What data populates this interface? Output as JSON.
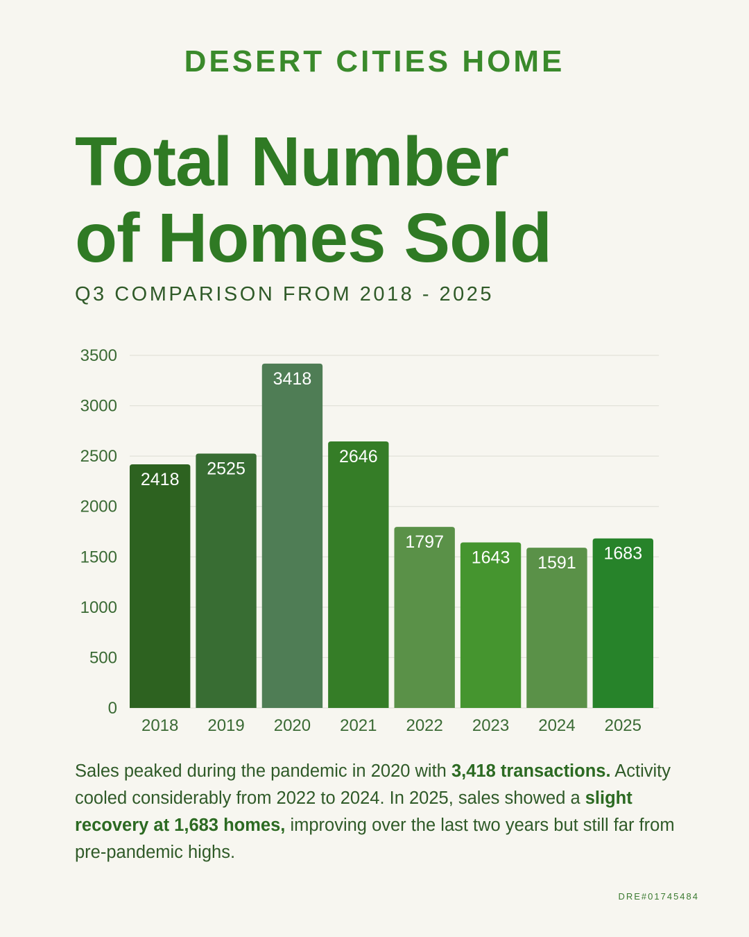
{
  "brand": "DESERT CITIES HOME",
  "title_line1": "Total Number",
  "title_line2": "of Homes Sold",
  "subtitle": "Q3 COMPARISON FROM 2018 - 2025",
  "chart_data": {
    "type": "bar",
    "title": "Total Number of Homes Sold",
    "subtitle": "Q3 COMPARISON FROM 2018 - 2025",
    "categories": [
      "2018",
      "2019",
      "2020",
      "2021",
      "2022",
      "2023",
      "2024",
      "2025"
    ],
    "values": [
      2418,
      2525,
      3418,
      2646,
      1797,
      1643,
      1591,
      1683
    ],
    "bar_labels": [
      "2418",
      "2525",
      "3418",
      "2646",
      "1797",
      "1643",
      "1591",
      "1683"
    ],
    "bar_colors": [
      "#2d6220",
      "#386d33",
      "#4f7d55",
      "#357d27",
      "#5a9148",
      "#45952f",
      "#5a9148",
      "#27832a"
    ],
    "yticks": [
      "0",
      "500",
      "1000",
      "1500",
      "2000",
      "2500",
      "3000",
      "3500"
    ],
    "ylim": [
      0,
      3500
    ],
    "xlabel": "",
    "ylabel": "",
    "grid": true,
    "legend": "none"
  },
  "summary": {
    "p1": "Sales peaked during the pandemic in 2020 with ",
    "b1": "3,418 transactions.",
    "p2": " Activity cooled considerably from 2022 to 2024. In 2025, sales showed a ",
    "b2": "slight recovery at 1,683 homes,",
    "p3": " improving over the last two years but still far from pre-pandemic highs."
  },
  "license": "DRE#01745484",
  "colors": {
    "background": "#f7f6f0",
    "accent": "#2f7a24",
    "grid": "#dcdcd4"
  }
}
